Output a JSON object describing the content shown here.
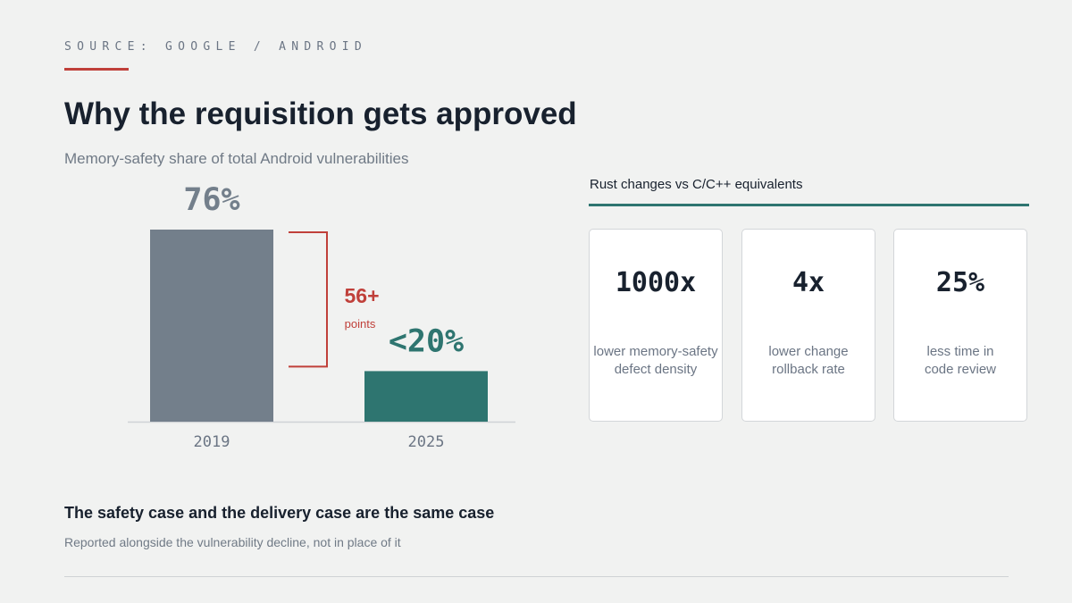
{
  "source": "SOURCE: GOOGLE / ANDROID",
  "title": "Why the requisition gets approved",
  "chart_data": {
    "type": "bar",
    "title": "",
    "subtitle": "Memory-safety share of total Android vulnerabilities",
    "categories": [
      "2019",
      "2025"
    ],
    "values": [
      76,
      20
    ],
    "value_labels": [
      "76%",
      "<20%"
    ],
    "bar_colors": [
      "#737f8b",
      "#2e7570"
    ],
    "label_colors": [
      "#737f8b",
      "#2e7570"
    ],
    "ylim": [
      0,
      76
    ],
    "unit": "%",
    "grid": false,
    "annotation": {
      "value": "56+",
      "label": "points",
      "color": "#c0403a"
    }
  },
  "comparison": {
    "heading": "Rust changes vs C/C++ equivalents",
    "accent_color": "#2e7570",
    "cards": [
      {
        "value": "1000x",
        "label_line1": "lower memory-safety",
        "label_line2": "defect density"
      },
      {
        "value": "4x",
        "label_line1": "lower change",
        "label_line2": "rollback rate"
      },
      {
        "value": "25%",
        "label_line1": "less time in",
        "label_line2": "code review"
      }
    ]
  },
  "footer": {
    "title": "The safety case and the delivery case are the same case",
    "note": "Reported alongside the vulnerability decline, not in place of it"
  },
  "colors": {
    "background": "#f1f2f1",
    "accent_red": "#c0403a",
    "accent_teal": "#2e7570",
    "neutral_bar": "#737f8b",
    "text_dark": "#18212e"
  }
}
